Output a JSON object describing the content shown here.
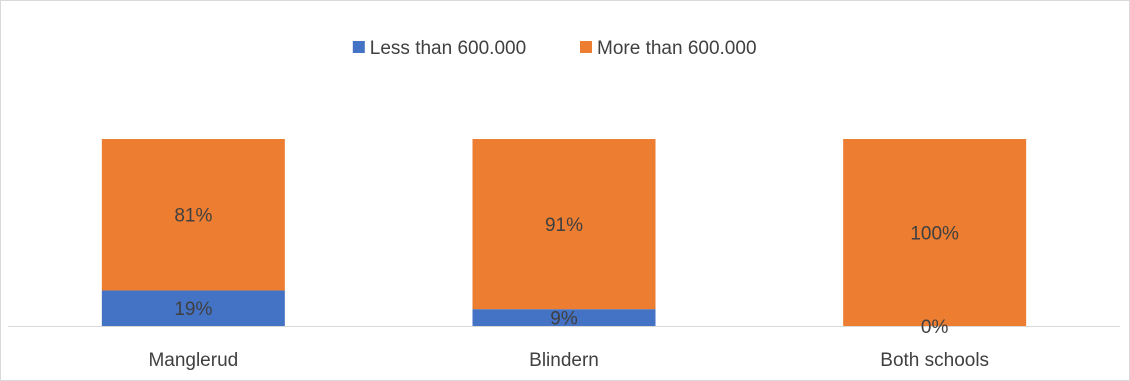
{
  "chart_data": {
    "type": "bar",
    "stacked": true,
    "percent": true,
    "categories": [
      "Manglerud",
      "Blindern",
      "Both schools"
    ],
    "series": [
      {
        "name": "Less than 600.000",
        "values": [
          19,
          9,
          0
        ],
        "labels": [
          "19%",
          "9%",
          "0%"
        ],
        "color": "#4472c4"
      },
      {
        "name": "More than 600.000",
        "values": [
          81,
          91,
          100
        ],
        "labels": [
          "81%",
          "91%",
          "100%"
        ],
        "color": "#ed7d31"
      }
    ],
    "ylim": [
      0,
      100
    ],
    "title": "",
    "xlabel": "",
    "ylabel": "",
    "legend_position": "top",
    "grid": false
  }
}
